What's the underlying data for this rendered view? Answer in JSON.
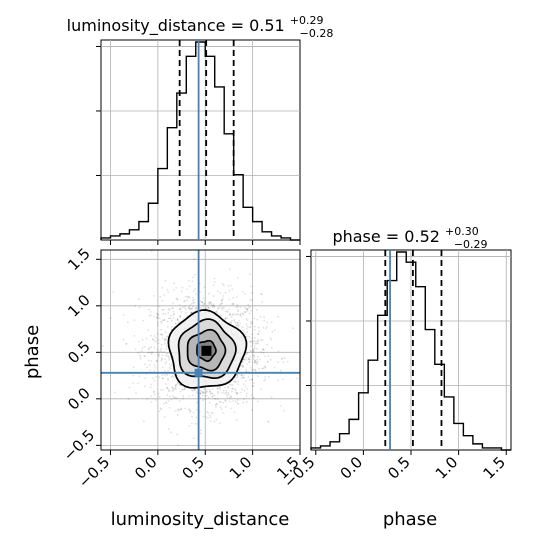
{
  "chart_data": [
    {
      "type": "histogram",
      "panel": "luminosity_distance marginal",
      "title": "luminosity_distance = 0.51",
      "title_main": "luminosity_distance = 0.51",
      "title_sup": "+0.29",
      "title_sub": "−0.28",
      "x_range": [
        -0.6,
        1.5
      ],
      "bin_edges": [
        -0.6,
        -0.5,
        -0.4,
        -0.3,
        -0.2,
        -0.1,
        0.0,
        0.1,
        0.2,
        0.3,
        0.4,
        0.5,
        0.6,
        0.7,
        0.8,
        0.9,
        1.0,
        1.1,
        1.2,
        1.3,
        1.4,
        1.5
      ],
      "counts": [
        1,
        2,
        3,
        5,
        9,
        18,
        35,
        55,
        72,
        90,
        97,
        90,
        75,
        52,
        32,
        16,
        9,
        4,
        2,
        1,
        0
      ],
      "quantiles": [
        0.23,
        0.51,
        0.8
      ],
      "truth": 0.43,
      "grid": true
    },
    {
      "type": "histogram",
      "panel": "phase marginal",
      "title": "phase = 0.52",
      "title_main": "phase = 0.52",
      "title_sup": "+0.30",
      "title_sub": "−0.29",
      "x_range": [
        -0.55,
        1.55
      ],
      "bin_edges": [
        -0.55,
        -0.45,
        -0.35,
        -0.25,
        -0.15,
        -0.05,
        0.05,
        0.15,
        0.25,
        0.35,
        0.45,
        0.55,
        0.65,
        0.75,
        0.85,
        0.95,
        1.05,
        1.15,
        1.25,
        1.35,
        1.45,
        1.55
      ],
      "counts": [
        1,
        2,
        4,
        8,
        15,
        28,
        44,
        66,
        83,
        97,
        92,
        80,
        59,
        42,
        26,
        13,
        7,
        3,
        1,
        1,
        0
      ],
      "quantiles": [
        0.23,
        0.52,
        0.82
      ],
      "truth": 0.28,
      "grid": true,
      "x_tick_labels": [
        "−0.5",
        "0.0",
        "0.5",
        "1.0",
        "1.5"
      ],
      "xlabel": "phase"
    },
    {
      "type": "heatmap",
      "panel": "joint density",
      "x_range": [
        -0.6,
        1.5
      ],
      "y_range": [
        -0.55,
        1.6
      ],
      "x_tick_labels": [
        "−0.5",
        "0.0",
        "0.5",
        "1.0",
        "1.5"
      ],
      "y_tick_labels": [
        "−0.5",
        "0.0",
        "0.5",
        "1.0",
        "1.5"
      ],
      "xlabel": "luminosity_distance",
      "ylabel": "phase",
      "center": [
        0.51,
        0.52
      ],
      "contour_levels": [
        {
          "sx": 0.1,
          "sy": 0.105
        },
        {
          "sx": 0.2,
          "sy": 0.21
        },
        {
          "sx": 0.3,
          "sy": 0.31
        },
        {
          "sx": 0.4,
          "sy": 0.41
        }
      ],
      "truth": [
        0.43,
        0.28
      ],
      "grid": true
    }
  ],
  "colors": {
    "hist": "#000000",
    "truth": "#4682b4",
    "grid": "#b0b0b0",
    "scatter": "#000000"
  }
}
